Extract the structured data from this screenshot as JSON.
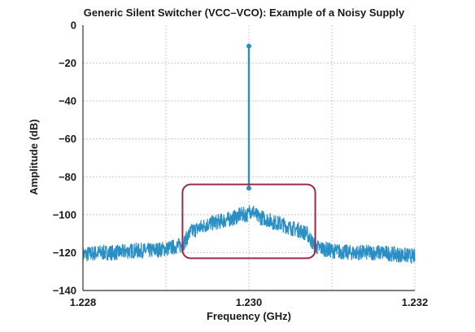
{
  "chart_data": {
    "type": "line",
    "title": "Generic Silent Switcher (VCC–VCO): Example of a Noisy Supply",
    "xlabel": "Frequency (GHz)",
    "ylabel": "Amplitude (dB)",
    "xlim": [
      1.228,
      1.232
    ],
    "ylim": [
      -140,
      0
    ],
    "x_ticks": [
      "1.228",
      "1.230",
      "1.232"
    ],
    "y_ticks": [
      "0",
      "−20",
      "−40",
      "−60",
      "−80",
      "−100",
      "−120",
      "−140"
    ],
    "x_tick_values": [
      1.228,
      1.23,
      1.232
    ],
    "y_tick_values": [
      0,
      -20,
      -40,
      -60,
      -80,
      -100,
      -120,
      -140
    ],
    "grid": true,
    "grid_x_values": [
      1.228,
      1.229,
      1.23,
      1.231,
      1.232
    ],
    "grid_y_values": [
      -20,
      -40,
      -60,
      -80,
      -100,
      -120
    ],
    "series": [
      {
        "color": "#2a8fc4",
        "x": [
          1.228,
          1.2282,
          1.2284,
          1.2286,
          1.2288,
          1.229,
          1.2292,
          1.2293,
          1.2294,
          1.2295,
          1.2296,
          1.2297,
          1.2298,
          1.2299,
          1.23,
          1.23005,
          1.2301,
          1.2302,
          1.2303,
          1.2304,
          1.2305,
          1.2306,
          1.2307,
          1.2308,
          1.231,
          1.2312,
          1.2314,
          1.2316,
          1.2318,
          1.232
        ],
        "y": [
          -121,
          -120,
          -120,
          -119,
          -119,
          -118,
          -116,
          -109,
          -107,
          -105,
          -104,
          -103,
          -102,
          -100,
          -11,
          -98,
          -101,
          -102,
          -104,
          -105,
          -107,
          -108,
          -110,
          -117,
          -119,
          -120,
          -120,
          -120,
          -121,
          -122
        ]
      }
    ],
    "annotations": [
      {
        "type": "rectangle",
        "color": "#9c2a4a",
        "x_range": [
          1.2292,
          1.2308
        ],
        "y_range": [
          -123,
          -84
        ]
      }
    ]
  }
}
